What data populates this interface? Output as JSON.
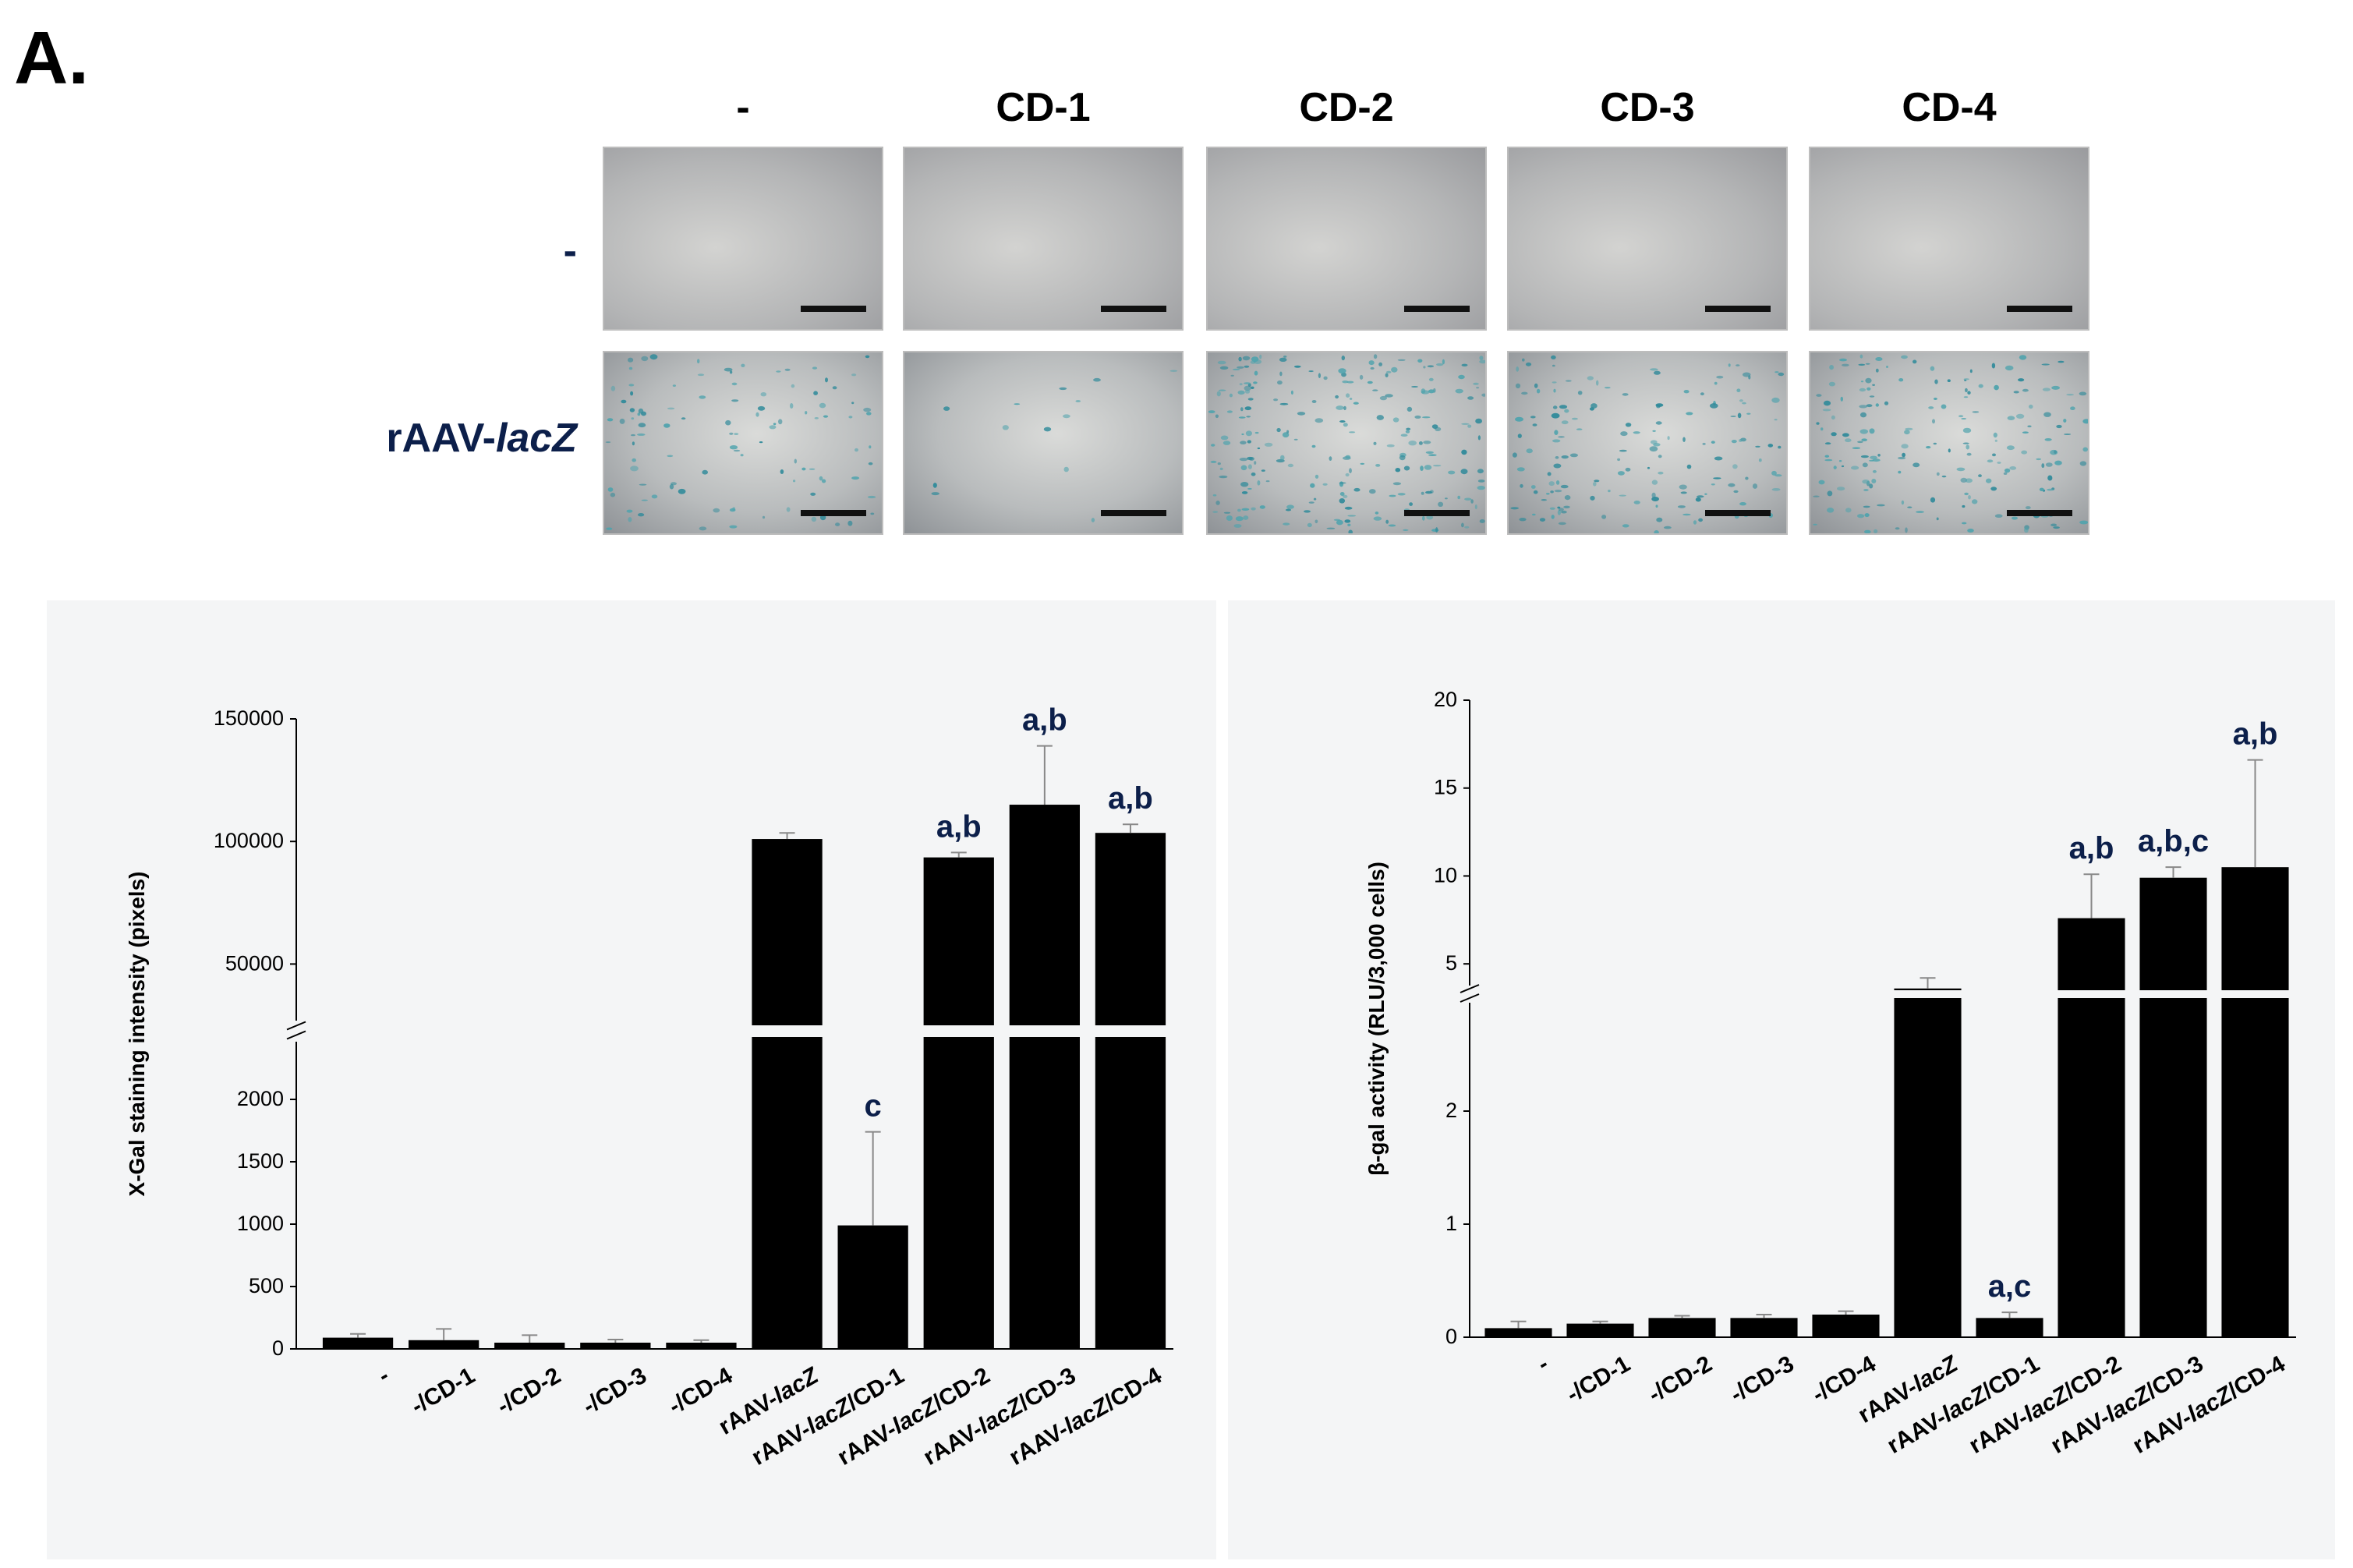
{
  "figure": {
    "panel_label": "A.",
    "micrographs": {
      "columns": [
        "-",
        "CD-1",
        "CD-2",
        "CD-3",
        "CD-4"
      ],
      "rows": [
        {
          "label": "-",
          "label_plain": "",
          "label_italic": ""
        },
        {
          "label": "rAAV-lacZ",
          "label_plain": "rAAV-",
          "label_italic": "lacZ"
        }
      ],
      "stain_level_by_row": [
        [
          0,
          0,
          0,
          0,
          0
        ],
        [
          0.4,
          0.05,
          0.9,
          0.6,
          0.7
        ]
      ]
    }
  },
  "chart_data": [
    {
      "type": "bar",
      "ylabel": "X-Gal staining intensity (pixels)",
      "xlabel": "",
      "categories": [
        "-",
        "-/CD-1",
        "-/CD-2",
        "-/CD-3",
        "-/CD-4",
        "rAAV-lacZ",
        "rAAV-lacZ/CD-1",
        "rAAV-lacZ/CD-2",
        "rAAV-lacZ/CD-3",
        "rAAV-lacZ/CD-4"
      ],
      "values": [
        90,
        70,
        50,
        50,
        50,
        101000,
        990,
        93500,
        115000,
        103500
      ],
      "errors": [
        30,
        90,
        60,
        25,
        20,
        2500,
        750,
        2000,
        24000,
        3500
      ],
      "annotations": [
        "",
        "",
        "",
        "",
        "",
        "",
        "c",
        "a,b",
        "a,b",
        "a,b"
      ],
      "axis_break": {
        "lower_max": 2500,
        "upper_min": 25000
      },
      "lower_ticks": [
        0,
        500,
        1000,
        1500,
        2000
      ],
      "upper_ticks": [
        50000,
        100000,
        150000
      ],
      "ylim": [
        0,
        150000
      ],
      "bar_color": "#000000"
    },
    {
      "type": "bar",
      "ylabel": "β-gal activity (RLU/3,000 cells)",
      "xlabel": "",
      "categories": [
        "-",
        "-/CD-1",
        "-/CD-2",
        "-/CD-3",
        "-/CD-4",
        "rAAV-lacZ",
        "rAAV-lacZ/CD-1",
        "rAAV-lacZ/CD-2",
        "rAAV-lacZ/CD-3",
        "rAAV-lacZ/CD-4"
      ],
      "values": [
        0.08,
        0.12,
        0.17,
        0.17,
        0.2,
        3.6,
        0.17,
        7.6,
        9.9,
        10.5
      ],
      "errors": [
        0.06,
        0.02,
        0.02,
        0.03,
        0.03,
        0.6,
        0.05,
        2.5,
        0.6,
        6.1
      ],
      "annotations": [
        "",
        "",
        "",
        "",
        "",
        "",
        "a,c",
        "a,b",
        "a,b,c",
        "a,b"
      ],
      "axis_break": {
        "lower_max": 3,
        "upper_min": 3.5
      },
      "lower_ticks": [
        0,
        1,
        2
      ],
      "upper_ticks": [
        5,
        10,
        15,
        20
      ],
      "ylim": [
        0,
        20
      ],
      "bar_color": "#000000"
    }
  ]
}
